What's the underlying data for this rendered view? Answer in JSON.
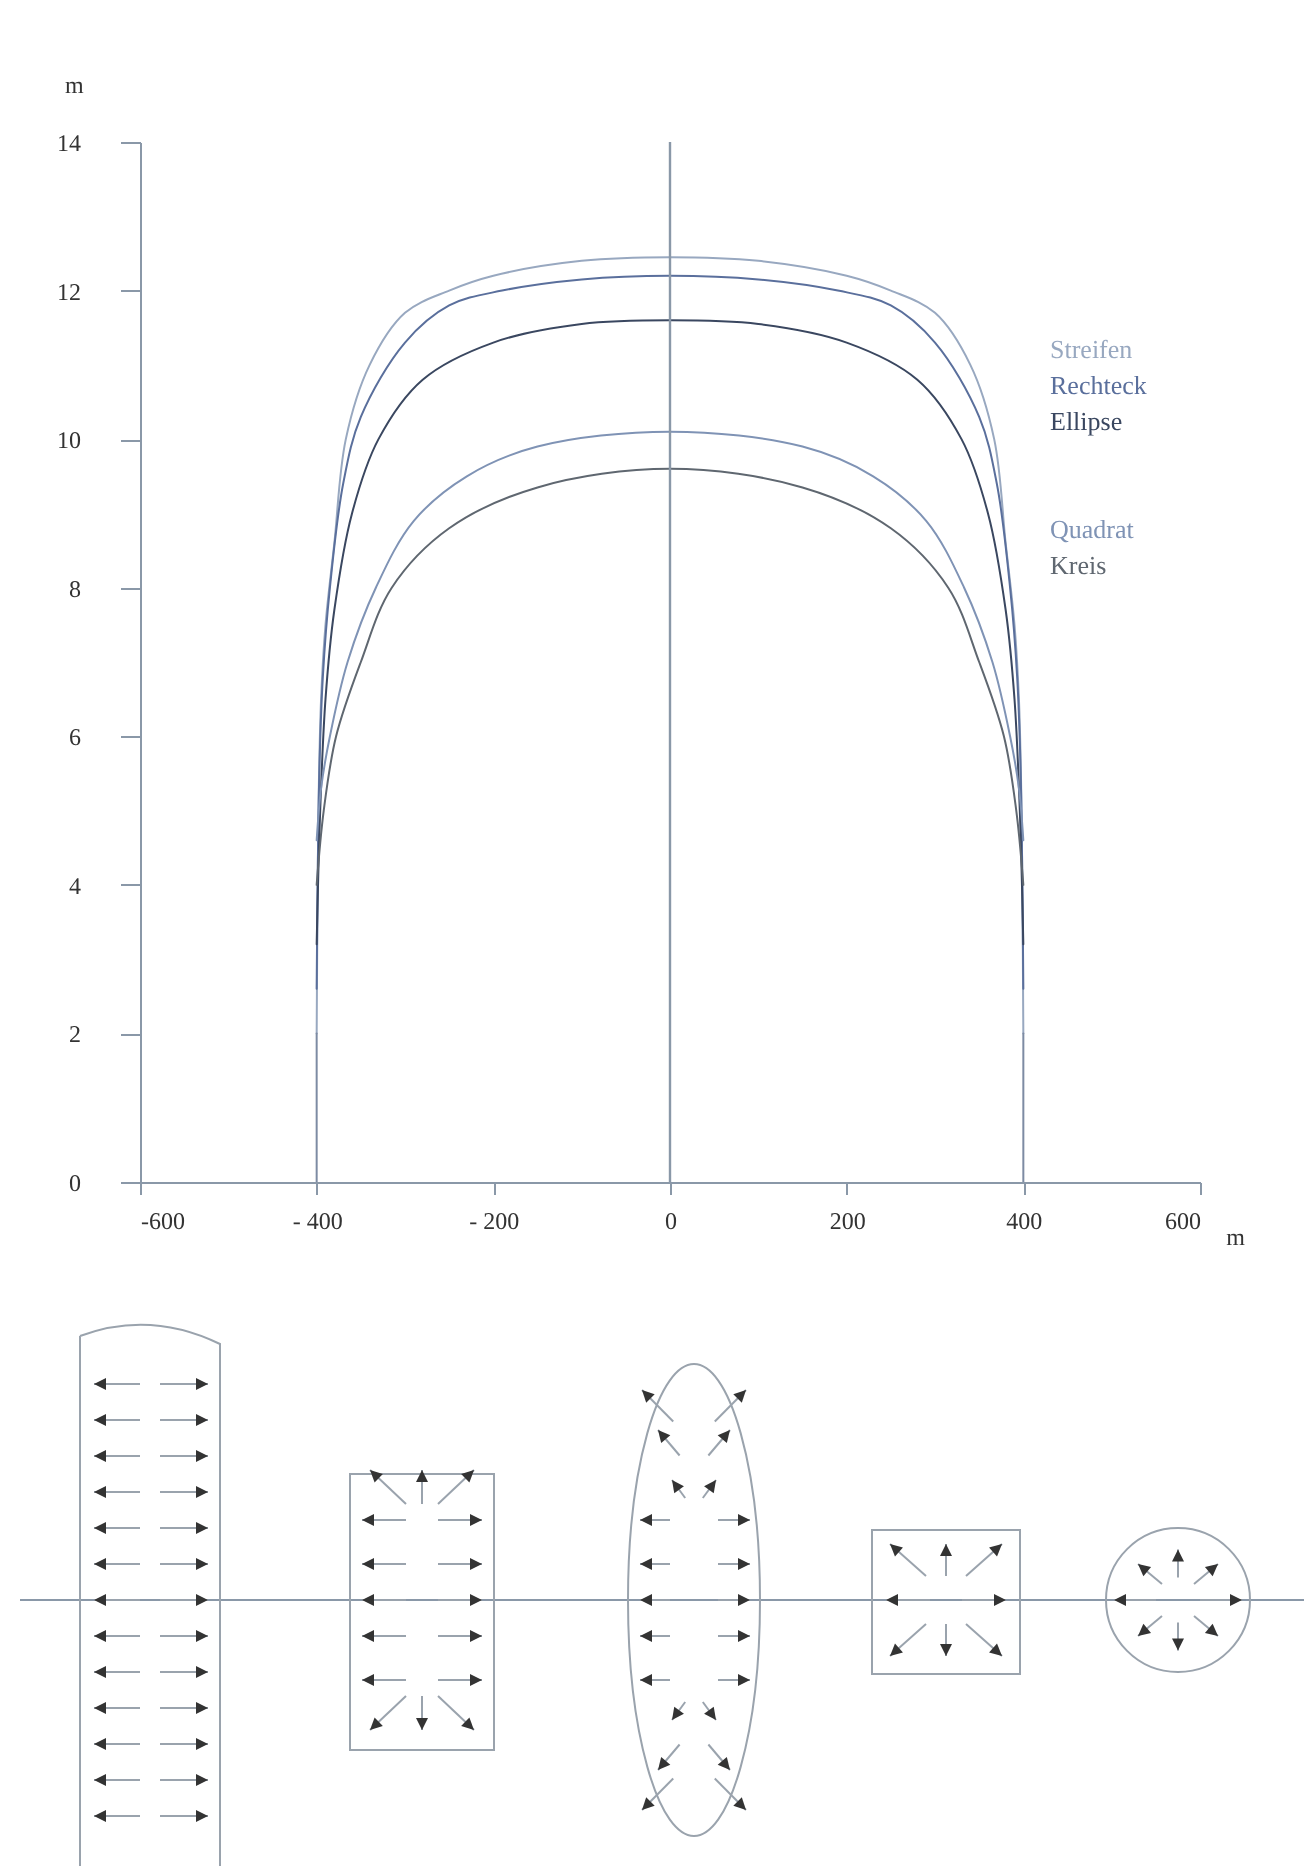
{
  "chart_data": {
    "type": "line",
    "xlabel": "m",
    "ylabel": "m",
    "xlim": [
      -600,
      600
    ],
    "xticks": [
      -600,
      {
        "value": -400,
        "label": "- 400"
      },
      {
        "value": -200,
        "label": "- 200"
      },
      0,
      200,
      400,
      600
    ],
    "ylim": [
      0,
      14
    ],
    "yticks": [
      0,
      2,
      4,
      6,
      8,
      10,
      12,
      14
    ],
    "grid": false,
    "legend": false,
    "marker": "none",
    "line_style": "solid",
    "ref_lines": [
      {
        "axis": "x",
        "value": 0
      }
    ],
    "series": [
      {
        "name": "Streifen",
        "color": "#98a8c0",
        "x": [
          -400,
          -398,
          -395,
          -390,
          -380,
          -367,
          -340,
          -300,
          -250,
          -200,
          -100,
          0,
          100,
          200,
          250,
          300,
          340,
          367,
          380,
          390,
          395,
          398,
          400
        ],
        "values": [
          2,
          5,
          6.5,
          7.5,
          8.6,
          10,
          11,
          11.7,
          12,
          12.2,
          12.4,
          12.45,
          12.4,
          12.2,
          12,
          11.7,
          11,
          10,
          8.6,
          7.5,
          6.5,
          5,
          2
        ]
      },
      {
        "name": "Rechteck",
        "color": "#5a6f9c",
        "x": [
          -400,
          -397,
          -393,
          -385,
          -370,
          -350,
          -300,
          -250,
          -190,
          -100,
          0,
          100,
          190,
          250,
          300,
          350,
          370,
          385,
          393,
          397,
          400
        ],
        "values": [
          2.6,
          5.5,
          6.8,
          8,
          9.4,
          10.3,
          11.3,
          11.8,
          12,
          12.15,
          12.2,
          12.15,
          12,
          11.8,
          11.3,
          10.3,
          9.4,
          8,
          6.8,
          5.5,
          2.6
        ]
      },
      {
        "name": "Ellipse",
        "color": "#3a4760",
        "x": [
          -400,
          -396,
          -390,
          -380,
          -360,
          -330,
          -280,
          -200,
          -100,
          0,
          100,
          200,
          280,
          330,
          360,
          380,
          390,
          396,
          400
        ],
        "values": [
          3.2,
          5,
          6.5,
          7.7,
          9,
          10,
          10.8,
          11.3,
          11.55,
          11.6,
          11.55,
          11.3,
          10.8,
          10,
          9,
          7.7,
          6.5,
          5,
          3.2
        ]
      },
      {
        "name": "Quadrat",
        "color": "#7f93b5",
        "x": [
          -400,
          -395,
          -385,
          -365,
          -333,
          -290,
          -230,
          -150,
          0,
          150,
          230,
          290,
          333,
          365,
          385,
          395,
          400
        ],
        "values": [
          4.6,
          5.3,
          6,
          7,
          8,
          8.9,
          9.5,
          9.9,
          10.1,
          9.9,
          9.5,
          8.9,
          8,
          7,
          6,
          5.3,
          4.6
        ]
      },
      {
        "name": "Kreis",
        "color": "#5f6770",
        "x": [
          -400,
          -392,
          -378,
          -350,
          -315,
          -250,
          -150,
          0,
          150,
          250,
          315,
          350,
          378,
          392,
          400
        ],
        "values": [
          4,
          5,
          6,
          7,
          8,
          8.8,
          9.35,
          9.6,
          9.35,
          8.8,
          8,
          7,
          6,
          5,
          4
        ]
      },
      {
        "color": "#7d8ba3",
        "x": [
          -400,
          -400
        ],
        "values": [
          0,
          2
        ]
      },
      {
        "color": "#7d8ba3",
        "x": [
          400,
          400
        ],
        "values": [
          0,
          2
        ]
      }
    ]
  }
}
